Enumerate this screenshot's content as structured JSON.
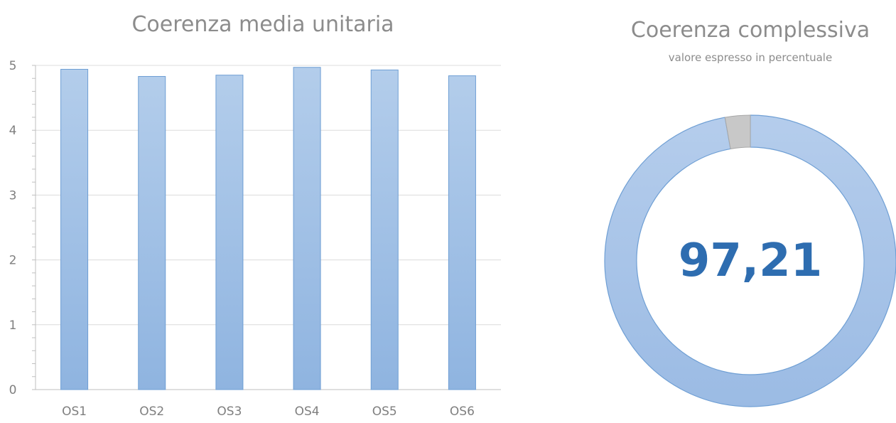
{
  "chart_data": [
    {
      "type": "bar",
      "title": "Coerenza media unitaria",
      "categories": [
        "OS1",
        "OS2",
        "OS3",
        "OS4",
        "OS5",
        "OS6"
      ],
      "values": [
        4.94,
        4.83,
        4.85,
        4.97,
        4.93,
        4.84
      ],
      "yticks": [
        "0",
        "1",
        "2",
        "3",
        "4",
        "5"
      ],
      "ylim": [
        0,
        5
      ],
      "grid": true,
      "bar_color": "#9dbde4"
    },
    {
      "type": "pie",
      "title": "Coerenza complessiva",
      "subtitle": "valore espresso in percentuale",
      "value": 97.21,
      "value_label": "97,21",
      "filled_color": "#a9c5e8",
      "remainder_color": "#c8c8c8",
      "label_color": "#2e6db0"
    }
  ]
}
